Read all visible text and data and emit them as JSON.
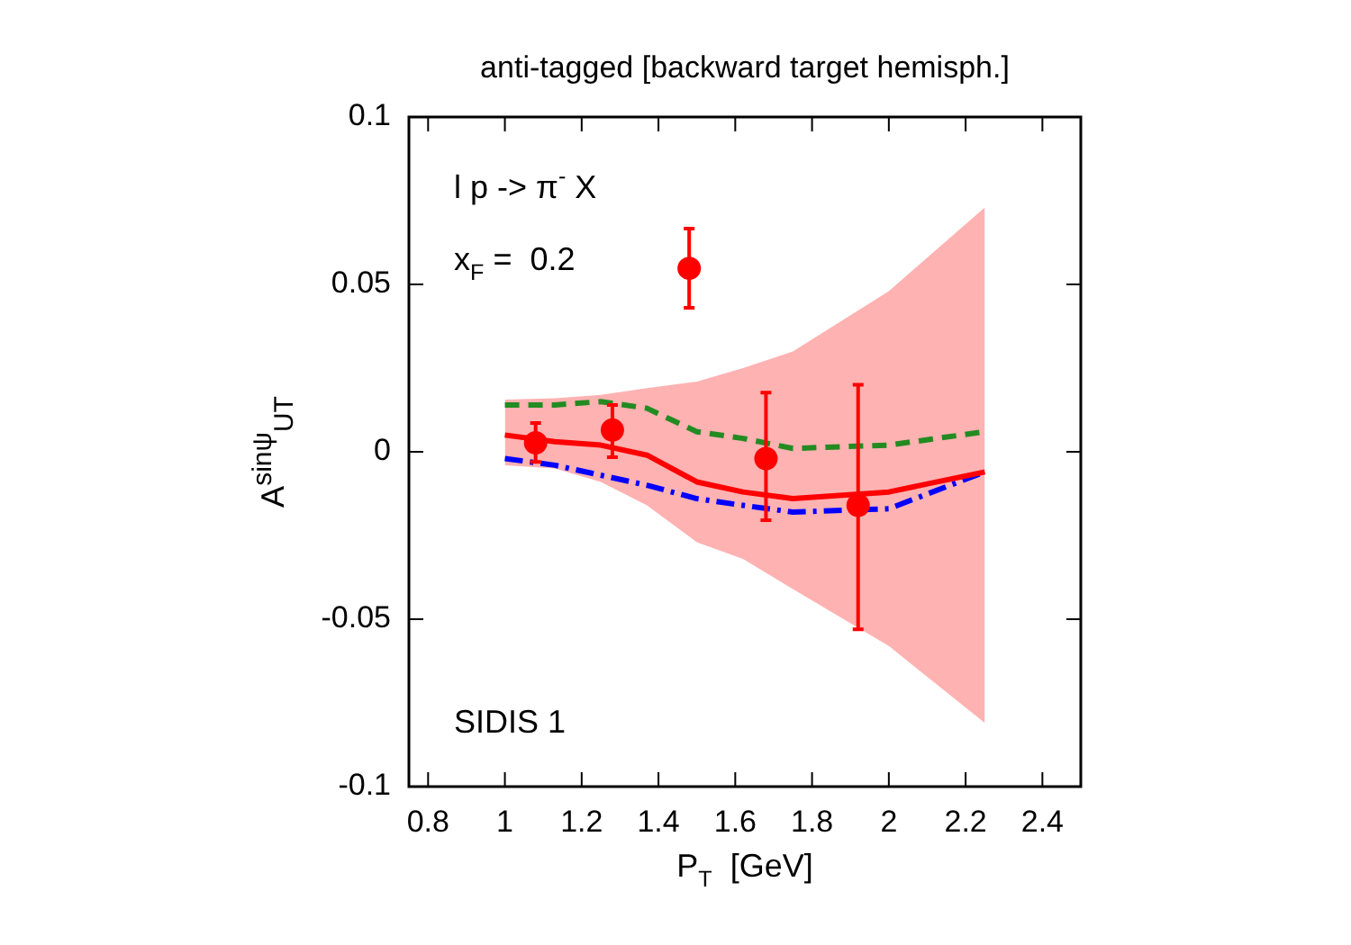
{
  "chart_data": {
    "type": "line",
    "title": "anti-tagged [backward target hemisph.]",
    "xlabel": "P$_{T}$  [GeV]",
    "ylabel": "A$^{sinψ}$$_{UT}$",
    "annotations": [
      "l p -> π$^{-}$ X",
      "x$_{F}$ =  0.2",
      "SIDIS 1"
    ],
    "xlim": [
      0.75,
      2.5
    ],
    "xticks": [
      0.8,
      1,
      1.2,
      1.4,
      1.6,
      1.8,
      2,
      2.2,
      2.4
    ],
    "ylim": [
      -0.1,
      0.1
    ],
    "yticks": [
      -0.1,
      -0.05,
      0,
      0.05,
      0.1
    ],
    "grid": false,
    "legend": false,
    "series": [
      {
        "color": "#ff0000",
        "line_style": "solid",
        "x": [
          1.0,
          1.13,
          1.25,
          1.37,
          1.5,
          1.62,
          1.75,
          2.0,
          2.25
        ],
        "values": [
          0.005,
          0.003,
          0.002,
          -0.001,
          -0.009,
          -0.012,
          -0.014,
          -0.012,
          -0.006
        ],
        "lower": [
          -0.004,
          -0.005,
          -0.009,
          -0.016,
          -0.027,
          -0.032,
          -0.041,
          -0.058,
          -0.081
        ],
        "upper": [
          0.0156,
          0.016,
          0.017,
          0.019,
          0.021,
          0.025,
          0.03,
          0.048,
          0.073
        ]
      },
      {
        "color": "#228b22",
        "line_style": "dashed",
        "x": [
          1.0,
          1.13,
          1.25,
          1.37,
          1.5,
          1.62,
          1.75,
          2.0,
          2.25
        ],
        "values": [
          0.014,
          0.014,
          0.015,
          0.013,
          0.006,
          0.004,
          0.001,
          0.002,
          0.006
        ]
      },
      {
        "color": "#0000ff",
        "line_style": "dashdot",
        "x": [
          1.0,
          1.13,
          1.25,
          1.37,
          1.5,
          1.62,
          1.75,
          2.0,
          2.25
        ],
        "values": [
          -0.002,
          -0.004,
          -0.007,
          -0.01,
          -0.014,
          -0.016,
          -0.018,
          -0.017,
          -0.006
        ]
      },
      {
        "type": "scatter",
        "color": "#ff0000",
        "marker": "circle",
        "x": [
          1.08,
          1.28,
          1.48,
          1.68,
          1.92
        ],
        "values": [
          0.0027,
          0.0065,
          0.0548,
          -0.002,
          -0.016
        ],
        "errors": [
          [
            -0.003,
            0.0086
          ],
          [
            -0.0016,
            0.014
          ],
          [
            0.043,
            0.0667
          ],
          [
            -0.0204,
            0.0177
          ],
          [
            -0.053,
            0.02
          ]
        ]
      }
    ]
  }
}
